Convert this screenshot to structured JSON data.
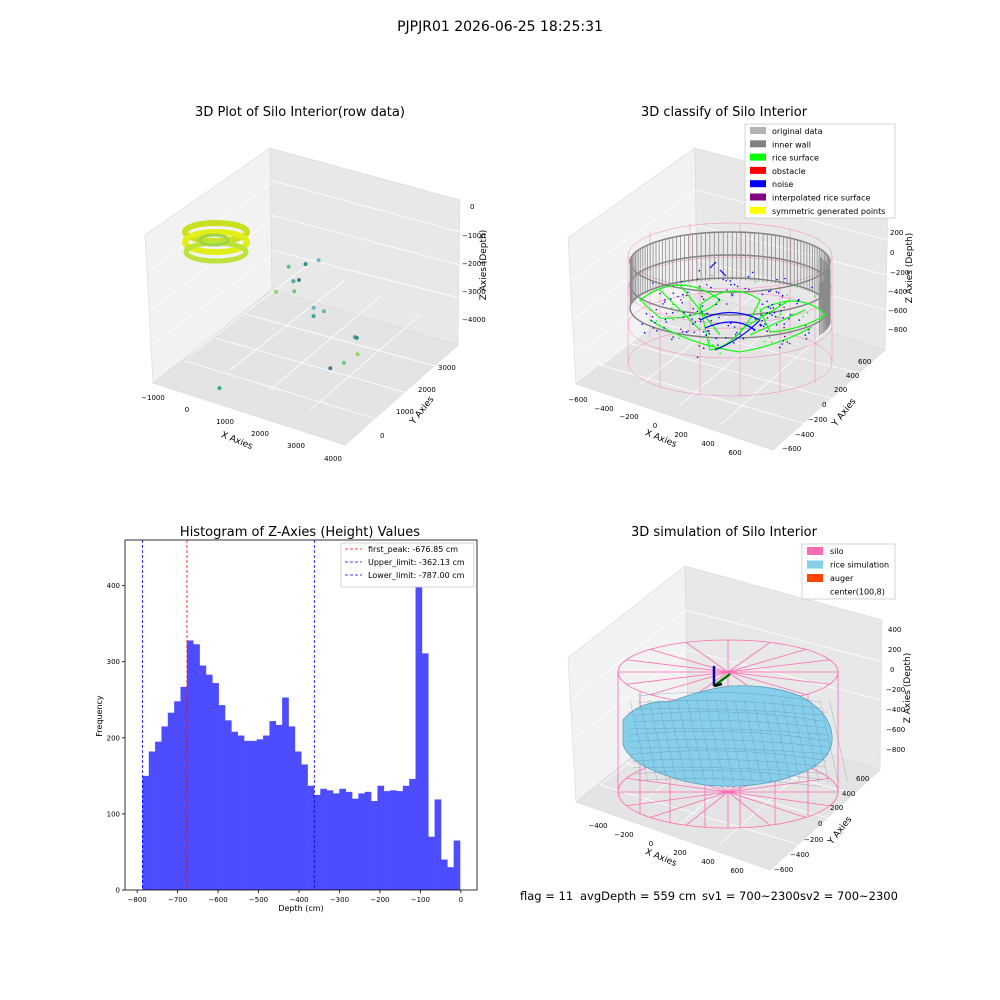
{
  "figure_title": "PJPJR01 2026-06-25 18:25:31",
  "footer": {
    "flag": "flag = 11",
    "avg_depth": "avgDepth = 559 cm",
    "sv1": "sv1 = 700~2300",
    "sv2": "sv2 = 700~2300"
  },
  "colors": {
    "hist_bar": "#4d4dff",
    "first_peak_line": "#ff0000",
    "limit_line": "#0000ff",
    "silo": "#ff69b4",
    "rice_simulation": "#87ceeb",
    "auger": "#ff4500",
    "original_data": "#b3b3b3",
    "inner_wall": "#808080",
    "rice_surface": "#00ff00",
    "obstacle": "#ff0000",
    "noise": "#0000ff",
    "interpolated_rice_surface": "#800080",
    "symmetric_generated_points": "#ffff00"
  },
  "chart_data": [
    {
      "type": "scatter",
      "panel": "top-left",
      "title": "3D Plot of Silo Interior(row data)",
      "xlabel": "X Axies",
      "ylabel": "Y Axies",
      "zlabel": "Z Axies (Depth)",
      "x_ticks": [
        "−1000",
        "0",
        "1000",
        "2000",
        "3000",
        "4000"
      ],
      "y_ticks": [
        "0",
        "1000",
        "2000",
        "3000"
      ],
      "z_ticks": [
        "0",
        "−1000",
        "−2000",
        "−3000",
        "−4000"
      ],
      "xlim": [
        -1000,
        4000
      ],
      "ylim": [
        -500,
        3500
      ],
      "zlim": [
        -4500,
        0
      ],
      "points": [
        {
          "x": 1750,
          "y": 1350,
          "z": -2700
        },
        {
          "x": 1900,
          "y": 1500,
          "z": -2600
        },
        {
          "x": 2400,
          "y": 1900,
          "z": -3500
        },
        {
          "x": 2600,
          "y": 1700,
          "z": -3300
        },
        {
          "x": 2500,
          "y": 1400,
          "z": -3900
        },
        {
          "x": 2700,
          "y": 1600,
          "z": -3700
        },
        {
          "x": 2300,
          "y": 1200,
          "z": -4000
        },
        {
          "x": 1400,
          "y": 1800,
          "z": -2900
        },
        {
          "x": 500,
          "y": -200,
          "z": -4300
        },
        {
          "x": -100,
          "y": 2900,
          "z": -3000
        },
        {
          "x": 100,
          "y": 2800,
          "z": -3300
        },
        {
          "x": 300,
          "y": 2950,
          "z": -2800
        },
        {
          "x": 200,
          "y": 2700,
          "z": -3500
        },
        {
          "x": -200,
          "y": 2600,
          "z": -3600
        },
        {
          "x": 400,
          "y": 2600,
          "z": -3000
        },
        {
          "x": 600,
          "y": 3000,
          "z": -2600
        }
      ],
      "ring_cluster": {
        "x_range": [
          -900,
          -100
        ],
        "y_range": [
          3000,
          3500
        ],
        "z": -1800
      }
    },
    {
      "type": "scatter",
      "panel": "top-right",
      "title": "3D classify of Silo Interior",
      "xlabel": "X Axies",
      "ylabel": "Y Axies",
      "zlabel": "Z Axies (Depth)",
      "x_ticks": [
        "−600",
        "−400",
        "−200",
        "0",
        "200",
        "400",
        "600"
      ],
      "y_ticks": [
        "−600",
        "−400",
        "−200",
        "0",
        "200",
        "400",
        "600"
      ],
      "z_ticks": [
        "200",
        "0",
        "−200",
        "−400",
        "−600",
        "−800"
      ],
      "xlim": [
        -650,
        650
      ],
      "ylim": [
        -650,
        650
      ],
      "zlim": [
        -900,
        350
      ],
      "legend_position": "top-right",
      "legend": [
        {
          "label": "original data",
          "color_key": "original_data"
        },
        {
          "label": "inner wall",
          "color_key": "inner_wall"
        },
        {
          "label": "rice surface",
          "color_key": "rice_surface"
        },
        {
          "label": "obstacle",
          "color_key": "obstacle"
        },
        {
          "label": "noise",
          "color_key": "noise"
        },
        {
          "label": "interpolated rice surface",
          "color_key": "interpolated_rice_surface"
        },
        {
          "label": "symmetric generated points",
          "color_key": "symmetric_generated_points"
        }
      ]
    },
    {
      "type": "bar",
      "panel": "bottom-left",
      "title": "Histogram of Z-Axies (Height) Values",
      "xlabel": "Depth (cm)",
      "ylabel": "Frequency",
      "xlim": [
        -830,
        40
      ],
      "ylim": [
        0,
        460
      ],
      "x_ticks": [
        -800,
        -700,
        -600,
        -500,
        -400,
        -300,
        -200,
        -100,
        0
      ],
      "x_tick_labels": [
        "−800",
        "−700",
        "−600",
        "−500",
        "−400",
        "−300",
        "−200",
        "−100",
        "0"
      ],
      "y_ticks": [
        0,
        100,
        200,
        300,
        400
      ],
      "y_tick_labels": [
        "0",
        "100",
        "200",
        "300",
        "400"
      ],
      "bin_start": -787.0,
      "bin_width": 15.7,
      "values": [
        150,
        182,
        195,
        215,
        233,
        248,
        267,
        328,
        323,
        295,
        283,
        272,
        243,
        223,
        208,
        203,
        196,
        196,
        198,
        203,
        222,
        217,
        253,
        215,
        182,
        165,
        137,
        125,
        133,
        131,
        127,
        133,
        129,
        120,
        127,
        129,
        117,
        137,
        130,
        131,
        130,
        137,
        146,
        440,
        311,
        70,
        119,
        40,
        30,
        65
      ],
      "vlines": [
        {
          "x": -676.85,
          "label": "first_peak: -676.85 cm",
          "style": "dashed",
          "color_key": "first_peak_line"
        },
        {
          "x": -362.13,
          "label": "Upper_limit: -362.13 cm",
          "style": "dashed",
          "color_key": "limit_line"
        },
        {
          "x": -787.0,
          "label": "Lower_limit: -787.00 cm",
          "style": "dashed",
          "color_key": "limit_line"
        }
      ],
      "legend_position": "top-right"
    },
    {
      "type": "surface",
      "panel": "bottom-right",
      "title": "3D simulation of Silo Interior",
      "xlabel": "X Axies",
      "ylabel": "Y Axies",
      "zlabel": "Z Axies (Depth)",
      "x_ticks": [
        "−400",
        "−200",
        "0",
        "200",
        "400",
        "600"
      ],
      "y_ticks": [
        "−600",
        "−400",
        "−200",
        "0",
        "200",
        "400",
        "600"
      ],
      "z_ticks": [
        "400",
        "200",
        "0",
        "−200",
        "−400",
        "−600",
        "−800"
      ],
      "legend_position": "top-right",
      "legend": [
        {
          "label": "silo",
          "color_key": "silo"
        },
        {
          "label": "rice simulation",
          "color_key": "rice_simulation"
        },
        {
          "label": "auger",
          "color_key": "auger"
        },
        {
          "label": "center(100,8)",
          "color_key": ""
        }
      ]
    }
  ]
}
